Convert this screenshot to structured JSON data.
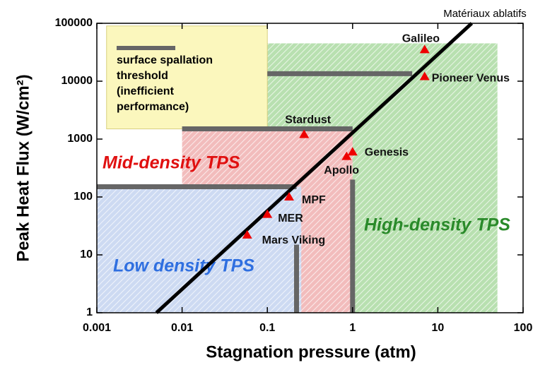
{
  "chart_data": {
    "type": "scatter",
    "xlabel": "Stagnation pressure (atm)",
    "ylabel": "Peak Heat Flux (W/cm²)",
    "xscale": "log",
    "yscale": "log",
    "xlim": [
      0.001,
      100
    ],
    "ylim": [
      1,
      100000
    ],
    "xticks": [
      0.001,
      0.01,
      0.1,
      1,
      10,
      100
    ],
    "yticks": [
      1,
      10,
      100,
      1000,
      10000,
      100000
    ],
    "series": [
      {
        "name": "missions",
        "color": "#ee0000",
        "labels": [
          "Galileo",
          "Pioneer Venus",
          "Stardust",
          "Genesis",
          "Apollo",
          "MPF",
          "MER",
          "Mars Viking"
        ],
        "x": [
          7,
          7,
          0.27,
          1,
          0.85,
          0.18,
          0.1,
          0.058
        ],
        "values": [
          35000,
          12000,
          1200,
          600,
          500,
          100,
          50,
          22
        ]
      }
    ],
    "line": {
      "name": "Matériaux ablatifs",
      "color": "#000000",
      "x": [
        0.005,
        25
      ],
      "values": [
        1,
        100000
      ]
    },
    "regions": [
      {
        "label": "High-density TPS",
        "color": "#2a8a2a",
        "fill": "#b8e0b0",
        "x": [
          0.1,
          50
        ],
        "y": [
          1,
          45000
        ]
      },
      {
        "label": "Mid-density TPS",
        "color": "#e01010",
        "fill": "#f2bcbc",
        "x": [
          0.01,
          1
        ],
        "y": [
          1,
          1500
        ]
      },
      {
        "label": "Low density TPS",
        "color": "#2f6fe0",
        "fill": "#cddaf2",
        "x": [
          0.001,
          0.25
        ],
        "y": [
          1,
          150
        ]
      }
    ],
    "legend_box": {
      "fill": "#fbf7bd",
      "x": [
        0.0013,
        0.1
      ],
      "y": [
        1500,
        90000
      ],
      "lines": [
        "surface spallation",
        "threshold",
        "(inefficient",
        "performance)"
      ]
    },
    "thresholds": [
      {
        "x": [
          0.1,
          5
        ],
        "y": [
          13500,
          13500
        ]
      },
      {
        "x": [
          0.01,
          1
        ],
        "y": [
          1500,
          1500
        ]
      },
      {
        "x": [
          0.001,
          0.22
        ],
        "y": [
          150,
          150
        ]
      },
      {
        "x": [
          0.22,
          0.22
        ],
        "y": [
          1,
          15
        ]
      },
      {
        "x": [
          1,
          1
        ],
        "y": [
          1,
          200
        ]
      }
    ]
  }
}
